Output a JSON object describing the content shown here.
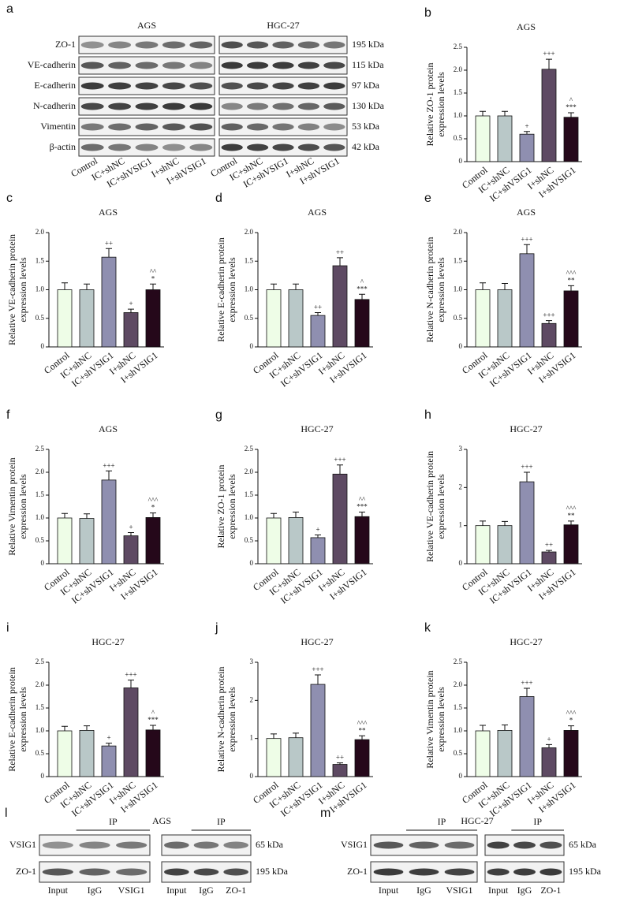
{
  "chart_data": [
    {
      "type": "bar",
      "letter": "b",
      "title": "AGS",
      "ylabel": [
        "Relative ZO-1 protein",
        "expression levels"
      ],
      "categories": [
        "Control",
        "IC+shNC",
        "IC+shVSIG1",
        "I+shNC",
        "I+shVSIG1"
      ],
      "values": [
        1.0,
        1.0,
        0.6,
        2.02,
        0.97
      ],
      "errors": [
        0.1,
        0.1,
        0.06,
        0.22,
        0.1
      ],
      "annotations": [
        [],
        [],
        [
          "+"
        ],
        [
          "+++"
        ],
        [
          "^",
          "***"
        ]
      ],
      "colors": [
        "#eefde7",
        "#b9c8c8",
        "#8f8fb0",
        "#5e4a63",
        "#25081a"
      ],
      "ylim": [
        0,
        2.5
      ],
      "yticks": [
        0,
        {
          "value": 0.5,
          "label": "0.5"
        },
        {
          "value": 1,
          "label": "1.0"
        },
        {
          "value": 1.5,
          "label": "1.5"
        },
        {
          "value": 2,
          "label": "2.0"
        },
        {
          "value": 2.5,
          "label": "2.5"
        }
      ]
    },
    {
      "type": "bar",
      "letter": "c",
      "title": "AGS",
      "ylabel": [
        "Relative VE-cadherin protein",
        "expression levels"
      ],
      "categories": [
        "Control",
        "IC+shNC",
        "IC+shVSIG1",
        "I+shNC",
        "I+shVSIG1"
      ],
      "values": [
        1.0,
        1.0,
        1.57,
        0.6,
        1.0
      ],
      "errors": [
        0.12,
        0.1,
        0.15,
        0.06,
        0.1
      ],
      "annotations": [
        [],
        [],
        [
          "++"
        ],
        [
          "+"
        ],
        [
          "^^",
          "*"
        ]
      ],
      "colors": [
        "#eefde7",
        "#b9c8c8",
        "#8f8fb0",
        "#5e4a63",
        "#25081a"
      ],
      "ylim": [
        0,
        2
      ],
      "yticks": [
        0,
        {
          "value": 0.5,
          "label": "0.5"
        },
        {
          "value": 1,
          "label": "1.0"
        },
        {
          "value": 1.5,
          "label": "1.5"
        },
        {
          "value": 2,
          "label": "2.0"
        }
      ]
    },
    {
      "type": "bar",
      "letter": "d",
      "title": "AGS",
      "ylabel": [
        "Relative E-cadherin protein",
        "expression levels"
      ],
      "categories": [
        "Control",
        "IC+shNC",
        "IC+shVSIG1",
        "I+shNC",
        "I+shVSIG1"
      ],
      "values": [
        1.0,
        1.0,
        0.55,
        1.42,
        0.83
      ],
      "errors": [
        0.1,
        0.1,
        0.05,
        0.14,
        0.09
      ],
      "annotations": [
        [],
        [],
        [
          "++"
        ],
        [
          "++"
        ],
        [
          "^",
          "***"
        ]
      ],
      "colors": [
        "#eefde7",
        "#b9c8c8",
        "#8f8fb0",
        "#5e4a63",
        "#25081a"
      ],
      "ylim": [
        0,
        2
      ],
      "yticks": [
        0,
        {
          "value": 0.5,
          "label": "0.5"
        },
        {
          "value": 1,
          "label": "1.0"
        },
        {
          "value": 1.5,
          "label": "1.5"
        },
        {
          "value": 2,
          "label": "2.0"
        }
      ]
    },
    {
      "type": "bar",
      "letter": "e",
      "title": "AGS",
      "ylabel": [
        "Relative N-cadherin protein",
        "expression levels"
      ],
      "categories": [
        "Control",
        "IC+shNC",
        "IC+shVSIG1",
        "I+shNC",
        "I+shVSIG1"
      ],
      "values": [
        1.0,
        1.0,
        1.63,
        0.41,
        0.98
      ],
      "errors": [
        0.12,
        0.11,
        0.16,
        0.05,
        0.09
      ],
      "annotations": [
        [],
        [],
        [
          "+++"
        ],
        [
          "+++"
        ],
        [
          "^^^",
          "**"
        ]
      ],
      "colors": [
        "#eefde7",
        "#b9c8c8",
        "#8f8fb0",
        "#5e4a63",
        "#25081a"
      ],
      "ylim": [
        0,
        2
      ],
      "yticks": [
        0,
        {
          "value": 0.5,
          "label": "0.5"
        },
        {
          "value": 1,
          "label": "1.0"
        },
        {
          "value": 1.5,
          "label": "1.5"
        },
        {
          "value": 2,
          "label": "2.0"
        }
      ]
    },
    {
      "type": "bar",
      "letter": "f",
      "title": "AGS",
      "ylabel": [
        "Relative Vimentin protein",
        "expression levels"
      ],
      "categories": [
        "Control",
        "IC+shNC",
        "IC+shVSIG1",
        "I+shNC",
        "I+shVSIG1"
      ],
      "values": [
        1.0,
        0.99,
        1.83,
        0.61,
        1.01
      ],
      "errors": [
        0.1,
        0.1,
        0.2,
        0.07,
        0.1
      ],
      "annotations": [
        [],
        [],
        [
          "+++"
        ],
        [
          "+"
        ],
        [
          "^^^",
          "*"
        ]
      ],
      "colors": [
        "#eefde7",
        "#b9c8c8",
        "#8f8fb0",
        "#5e4a63",
        "#25081a"
      ],
      "ylim": [
        0,
        2.5
      ],
      "yticks": [
        0,
        {
          "value": 0.5,
          "label": "0.5"
        },
        {
          "value": 1,
          "label": "1.0"
        },
        {
          "value": 1.5,
          "label": "1.5"
        },
        {
          "value": 2,
          "label": "2.0"
        },
        {
          "value": 2.5,
          "label": "2.5"
        }
      ]
    },
    {
      "type": "bar",
      "letter": "g",
      "title": "HGC-27",
      "ylabel": [
        "Relative ZO-1 protein",
        "expression levels"
      ],
      "categories": [
        "Control",
        "IC+shNC",
        "IC+shVSIG1",
        "I+shNC",
        "I+shVSIG1"
      ],
      "values": [
        1.0,
        1.01,
        0.57,
        1.96,
        1.03
      ],
      "errors": [
        0.1,
        0.12,
        0.06,
        0.2,
        0.1
      ],
      "annotations": [
        [],
        [],
        [
          "+"
        ],
        [
          "+++"
        ],
        [
          "^^",
          "***"
        ]
      ],
      "colors": [
        "#eefde7",
        "#b9c8c8",
        "#8f8fb0",
        "#5e4a63",
        "#25081a"
      ],
      "ylim": [
        0,
        2.5
      ],
      "yticks": [
        0,
        {
          "value": 0.5,
          "label": "0.5"
        },
        {
          "value": 1,
          "label": "1.0"
        },
        {
          "value": 1.5,
          "label": "1.5"
        },
        {
          "value": 2,
          "label": "2.0"
        },
        {
          "value": 2.5,
          "label": "2.5"
        }
      ]
    },
    {
      "type": "bar",
      "letter": "h",
      "title": "HGC-27",
      "ylabel": [
        "Relative VE-cadherin protein",
        "expression levels"
      ],
      "categories": [
        "Control",
        "IC+shNC",
        "IC+shVSIG1",
        "I+shNC",
        "I+shVSIG1"
      ],
      "values": [
        1.0,
        1.0,
        2.15,
        0.31,
        1.02
      ],
      "errors": [
        0.12,
        0.11,
        0.25,
        0.04,
        0.1
      ],
      "annotations": [
        [],
        [],
        [
          "+++"
        ],
        [
          "++"
        ],
        [
          "^^^",
          "**"
        ]
      ],
      "colors": [
        "#eefde7",
        "#b9c8c8",
        "#8f8fb0",
        "#5e4a63",
        "#25081a"
      ],
      "ylim": [
        0,
        3
      ],
      "yticks": [
        0,
        1,
        2,
        3
      ]
    },
    {
      "type": "bar",
      "letter": "i",
      "title": "HGC-27",
      "ylabel": [
        "Relative E-cadherin protein",
        "expression levels"
      ],
      "categories": [
        "Control",
        "IC+shNC",
        "IC+shVSIG1",
        "I+shNC",
        "I+shVSIG1"
      ],
      "values": [
        1.0,
        1.01,
        0.67,
        1.94,
        1.02
      ],
      "errors": [
        0.1,
        0.1,
        0.06,
        0.17,
        0.1
      ],
      "annotations": [
        [],
        [],
        [
          "+"
        ],
        [
          "+++"
        ],
        [
          "^",
          "***"
        ]
      ],
      "colors": [
        "#eefde7",
        "#b9c8c8",
        "#8f8fb0",
        "#5e4a63",
        "#25081a"
      ],
      "ylim": [
        0,
        2.5
      ],
      "yticks": [
        0,
        {
          "value": 0.5,
          "label": "0.5"
        },
        {
          "value": 1,
          "label": "1.0"
        },
        {
          "value": 1.5,
          "label": "1.5"
        },
        {
          "value": 2,
          "label": "2.0"
        },
        {
          "value": 2.5,
          "label": "2.5"
        }
      ]
    },
    {
      "type": "bar",
      "letter": "j",
      "title": "HGC-27",
      "ylabel": [
        "Relative N-cadherin protein",
        "expression levels"
      ],
      "categories": [
        "Control",
        "IC+shNC",
        "IC+shVSIG1",
        "I+shNC",
        "I+shVSIG1"
      ],
      "values": [
        1.0,
        1.02,
        2.42,
        0.32,
        0.97
      ],
      "errors": [
        0.12,
        0.12,
        0.25,
        0.04,
        0.1
      ],
      "annotations": [
        [],
        [],
        [
          "+++"
        ],
        [
          "++"
        ],
        [
          "^^^",
          "**"
        ]
      ],
      "colors": [
        "#eefde7",
        "#b9c8c8",
        "#8f8fb0",
        "#5e4a63",
        "#25081a"
      ],
      "ylim": [
        0,
        3
      ],
      "yticks": [
        0,
        1,
        2,
        3
      ]
    },
    {
      "type": "bar",
      "letter": "k",
      "title": "HGC-27",
      "ylabel": [
        "Relative Vimentin protein",
        "expression levels"
      ],
      "categories": [
        "Control",
        "IC+shNC",
        "IC+shVSIG1",
        "I+shNC",
        "I+shVSIG1"
      ],
      "values": [
        1.0,
        1.01,
        1.75,
        0.63,
        1.01
      ],
      "errors": [
        0.12,
        0.12,
        0.18,
        0.07,
        0.1
      ],
      "annotations": [
        [],
        [],
        [
          "+++"
        ],
        [
          "+"
        ],
        [
          "^^^",
          "*"
        ]
      ],
      "colors": [
        "#eefde7",
        "#b9c8c8",
        "#8f8fb0",
        "#5e4a63",
        "#25081a"
      ],
      "ylim": [
        0,
        2.5
      ],
      "yticks": [
        0,
        {
          "value": 0.5,
          "label": "0.5"
        },
        {
          "value": 1,
          "label": "1.0"
        },
        {
          "value": 1.5,
          "label": "1.5"
        },
        {
          "value": 2,
          "label": "2.0"
        },
        {
          "value": 2.5,
          "label": "2.5"
        }
      ]
    }
  ],
  "blots": {
    "letter": "a",
    "cells": [
      "AGS",
      "HGC-27"
    ],
    "proteins": [
      "ZO-1",
      "VE-cadherin",
      "E-cadherin",
      "N-cadherin",
      "Vimentin",
      "β-actin"
    ],
    "sizes": [
      "195 kDa",
      "115 kDa",
      "97 kDa",
      "130 kDa",
      "53 kDa",
      "42 kDa"
    ],
    "lanes": [
      "Control",
      "IC+shNC",
      "IC+shVSIG1",
      "I+shNC",
      "I+shVSIG1"
    ]
  },
  "ip": [
    {
      "letter": "l",
      "title": "AGS",
      "ip_labels": [
        "IP",
        "IP"
      ],
      "rows": [
        "VSIG1",
        "ZO-1"
      ],
      "sizes": [
        "65 kDa",
        "195 kDa"
      ],
      "lanes": [
        [
          "Input",
          "IgG",
          "VSIG1"
        ],
        [
          "Input",
          "IgG",
          "ZO-1"
        ]
      ]
    },
    {
      "letter": "m",
      "title": "HGC-27",
      "ip_labels": [
        "IP",
        "IP"
      ],
      "rows": [
        "VSIG1",
        "ZO-1"
      ],
      "sizes": [
        "65 kDa",
        "195 kDa"
      ],
      "lanes": [
        [
          "Input",
          "IgG",
          "VSIG1"
        ],
        [
          "Input",
          "IgG",
          "ZO-1"
        ]
      ]
    }
  ]
}
